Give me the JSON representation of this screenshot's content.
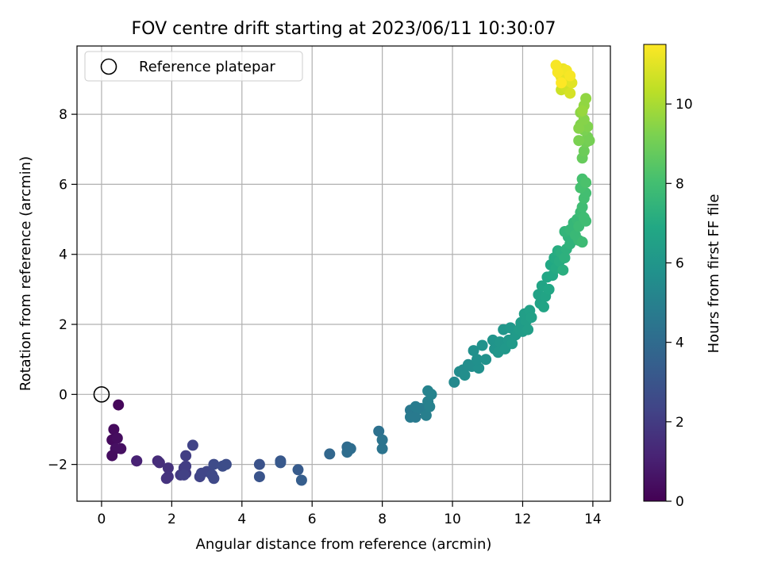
{
  "chart_data": {
    "type": "scatter",
    "title": "FOV centre drift starting at 2023/06/11 10:30:07",
    "xlabel": "Angular distance from reference (arcmin)",
    "ylabel": "Rotation from reference (arcmin)",
    "xlim": [
      -0.7,
      14.5
    ],
    "ylim": [
      -3.05,
      9.95
    ],
    "xticks": [
      "0",
      "2",
      "4",
      "6",
      "8",
      "10",
      "12",
      "14"
    ],
    "yticks": [
      "−2",
      "0",
      "2",
      "4",
      "6",
      "8"
    ],
    "grid": true,
    "legend": {
      "label": "Reference platepar",
      "placement": "upper-left"
    },
    "colorbar": {
      "label": "Hours from first FF file",
      "min": 0,
      "max": 11.5,
      "ticks": [
        "0",
        "2",
        "4",
        "6",
        "8",
        "10"
      ],
      "colormap": "viridis"
    },
    "reference_point": {
      "x": 0,
      "y": 0
    },
    "points": [
      [
        0.48,
        -0.3,
        0.2
      ],
      [
        0.35,
        -1.0,
        0.3
      ],
      [
        0.3,
        -1.3,
        0.3
      ],
      [
        0.45,
        -1.25,
        0.4
      ],
      [
        0.4,
        -1.55,
        0.5
      ],
      [
        0.55,
        -1.55,
        0.5
      ],
      [
        0.3,
        -1.75,
        0.4
      ],
      [
        1.0,
        -1.9,
        1.0
      ],
      [
        1.0,
        -1.9,
        1.1
      ],
      [
        1.6,
        -1.9,
        1.4
      ],
      [
        1.65,
        -1.95,
        1.5
      ],
      [
        1.9,
        -2.1,
        1.6
      ],
      [
        1.9,
        -2.35,
        1.7
      ],
      [
        1.85,
        -2.4,
        1.7
      ],
      [
        2.25,
        -2.3,
        1.9
      ],
      [
        2.35,
        -2.1,
        2.0
      ],
      [
        2.4,
        -2.25,
        2.0
      ],
      [
        2.4,
        -1.75,
        2.1
      ],
      [
        2.4,
        -2.05,
        2.1
      ],
      [
        2.35,
        -2.3,
        2.2
      ],
      [
        2.6,
        -1.45,
        2.3
      ],
      [
        2.8,
        -2.35,
        2.3
      ],
      [
        2.85,
        -2.25,
        2.4
      ],
      [
        3.0,
        -2.2,
        2.4
      ],
      [
        3.15,
        -2.3,
        2.5
      ],
      [
        3.2,
        -2.4,
        2.5
      ],
      [
        3.2,
        -2.0,
        2.6
      ],
      [
        3.45,
        -2.05,
        2.7
      ],
      [
        3.55,
        -2.0,
        2.7
      ],
      [
        4.5,
        -2.0,
        2.9
      ],
      [
        4.5,
        -2.35,
        3.0
      ],
      [
        5.1,
        -1.9,
        3.1
      ],
      [
        5.1,
        -1.95,
        3.2
      ],
      [
        5.6,
        -2.15,
        3.3
      ],
      [
        5.7,
        -2.45,
        3.4
      ],
      [
        6.5,
        -1.7,
        3.8
      ],
      [
        7.0,
        -1.5,
        4.0
      ],
      [
        7.0,
        -1.65,
        4.1
      ],
      [
        7.1,
        -1.55,
        4.1
      ],
      [
        7.9,
        -1.05,
        4.3
      ],
      [
        8.0,
        -1.3,
        4.4
      ],
      [
        8.0,
        -1.55,
        4.4
      ],
      [
        8.8,
        -0.45,
        4.6
      ],
      [
        8.8,
        -0.65,
        4.7
      ],
      [
        8.95,
        -0.65,
        4.7
      ],
      [
        8.95,
        -0.35,
        4.8
      ],
      [
        9.1,
        -0.4,
        4.8
      ],
      [
        9.25,
        -0.6,
        4.9
      ],
      [
        9.3,
        -0.2,
        5.0
      ],
      [
        9.35,
        -0.35,
        5.0
      ],
      [
        9.3,
        0.1,
        5.1
      ],
      [
        9.4,
        0.0,
        5.1
      ],
      [
        10.05,
        0.35,
        5.4
      ],
      [
        10.2,
        0.65,
        5.5
      ],
      [
        10.3,
        0.7,
        5.5
      ],
      [
        10.35,
        0.55,
        5.6
      ],
      [
        10.45,
        0.85,
        5.6
      ],
      [
        10.55,
        0.8,
        5.6
      ],
      [
        10.6,
        1.25,
        5.7
      ],
      [
        10.75,
        0.75,
        5.7
      ],
      [
        10.7,
        1.0,
        5.7
      ],
      [
        10.85,
        1.4,
        5.8
      ],
      [
        10.95,
        1.0,
        5.8
      ],
      [
        11.15,
        1.55,
        5.9
      ],
      [
        11.2,
        1.3,
        5.9
      ],
      [
        11.3,
        1.2,
        6.0
      ],
      [
        11.35,
        1.5,
        6.0
      ],
      [
        11.45,
        1.85,
        6.0
      ],
      [
        11.5,
        1.3,
        6.1
      ],
      [
        11.6,
        1.55,
        6.1
      ],
      [
        11.65,
        1.9,
        6.1
      ],
      [
        11.7,
        1.45,
        6.2
      ],
      [
        11.8,
        1.7,
        6.2
      ],
      [
        11.9,
        1.85,
        6.3
      ],
      [
        11.95,
        2.05,
        6.3
      ],
      [
        12.0,
        1.8,
        6.3
      ],
      [
        12.05,
        2.3,
        6.4
      ],
      [
        12.1,
        2.1,
        6.4
      ],
      [
        12.15,
        1.85,
        6.4
      ],
      [
        12.2,
        2.4,
        6.5
      ],
      [
        12.25,
        2.2,
        6.5
      ],
      [
        12.45,
        2.85,
        6.6
      ],
      [
        12.5,
        2.6,
        6.6
      ],
      [
        12.55,
        3.1,
        6.7
      ],
      [
        12.6,
        2.5,
        6.7
      ],
      [
        12.65,
        2.8,
        6.7
      ],
      [
        12.7,
        3.35,
        6.8
      ],
      [
        12.75,
        3.0,
        6.8
      ],
      [
        12.8,
        3.7,
        6.9
      ],
      [
        12.85,
        3.4,
        6.9
      ],
      [
        12.9,
        3.9,
        7.0
      ],
      [
        12.95,
        3.6,
        7.0
      ],
      [
        13.0,
        4.1,
        7.1
      ],
      [
        13.05,
        3.8,
        7.1
      ],
      [
        13.1,
        4.05,
        7.2
      ],
      [
        13.15,
        3.55,
        7.2
      ],
      [
        13.2,
        3.9,
        7.3
      ],
      [
        13.25,
        4.15,
        7.3
      ],
      [
        13.3,
        4.5,
        7.4
      ],
      [
        13.35,
        4.3,
        7.4
      ],
      [
        13.2,
        4.65,
        7.5
      ],
      [
        13.35,
        4.7,
        7.6
      ],
      [
        13.45,
        4.9,
        7.6
      ],
      [
        13.5,
        4.55,
        7.7
      ],
      [
        13.55,
        5.0,
        7.7
      ],
      [
        13.6,
        4.4,
        7.7
      ],
      [
        13.65,
        5.2,
        7.8
      ],
      [
        13.6,
        4.8,
        7.8
      ],
      [
        13.7,
        4.35,
        7.8
      ],
      [
        13.75,
        5.05,
        7.9
      ],
      [
        13.8,
        4.95,
        7.9
      ],
      [
        13.7,
        5.35,
        7.9
      ],
      [
        13.75,
        5.6,
        8.0
      ],
      [
        13.8,
        5.75,
        8.0
      ],
      [
        13.65,
        5.9,
        8.1
      ],
      [
        13.7,
        6.15,
        8.1
      ],
      [
        13.8,
        6.05,
        8.2
      ],
      [
        13.7,
        6.75,
        8.8
      ],
      [
        13.75,
        6.95,
        8.9
      ],
      [
        13.8,
        7.2,
        9.0
      ],
      [
        13.85,
        7.35,
        9.1
      ],
      [
        13.9,
        7.25,
        9.1
      ],
      [
        13.6,
        7.25,
        9.2
      ],
      [
        13.75,
        7.55,
        9.2
      ],
      [
        13.85,
        7.65,
        9.3
      ],
      [
        13.65,
        7.7,
        9.3
      ],
      [
        13.75,
        7.85,
        9.4
      ],
      [
        13.6,
        7.6,
        9.4
      ],
      [
        13.65,
        8.05,
        9.5
      ],
      [
        13.75,
        8.25,
        9.6
      ],
      [
        13.8,
        8.45,
        9.6
      ],
      [
        13.7,
        8.1,
        9.7
      ],
      [
        13.1,
        8.7,
        10.6
      ],
      [
        13.25,
        8.75,
        10.7
      ],
      [
        13.35,
        8.6,
        10.8
      ],
      [
        13.3,
        8.95,
        10.9
      ],
      [
        13.4,
        8.9,
        11.0
      ],
      [
        13.2,
        9.05,
        11.0
      ],
      [
        13.05,
        9.15,
        11.1
      ],
      [
        13.1,
        9.05,
        11.1
      ],
      [
        13.15,
        9.3,
        11.2
      ],
      [
        13.25,
        9.25,
        11.3
      ],
      [
        12.95,
        9.4,
        11.4
      ],
      [
        13.0,
        9.2,
        11.4
      ],
      [
        13.35,
        9.1,
        11.4
      ],
      [
        13.1,
        8.9,
        11.5
      ]
    ]
  }
}
